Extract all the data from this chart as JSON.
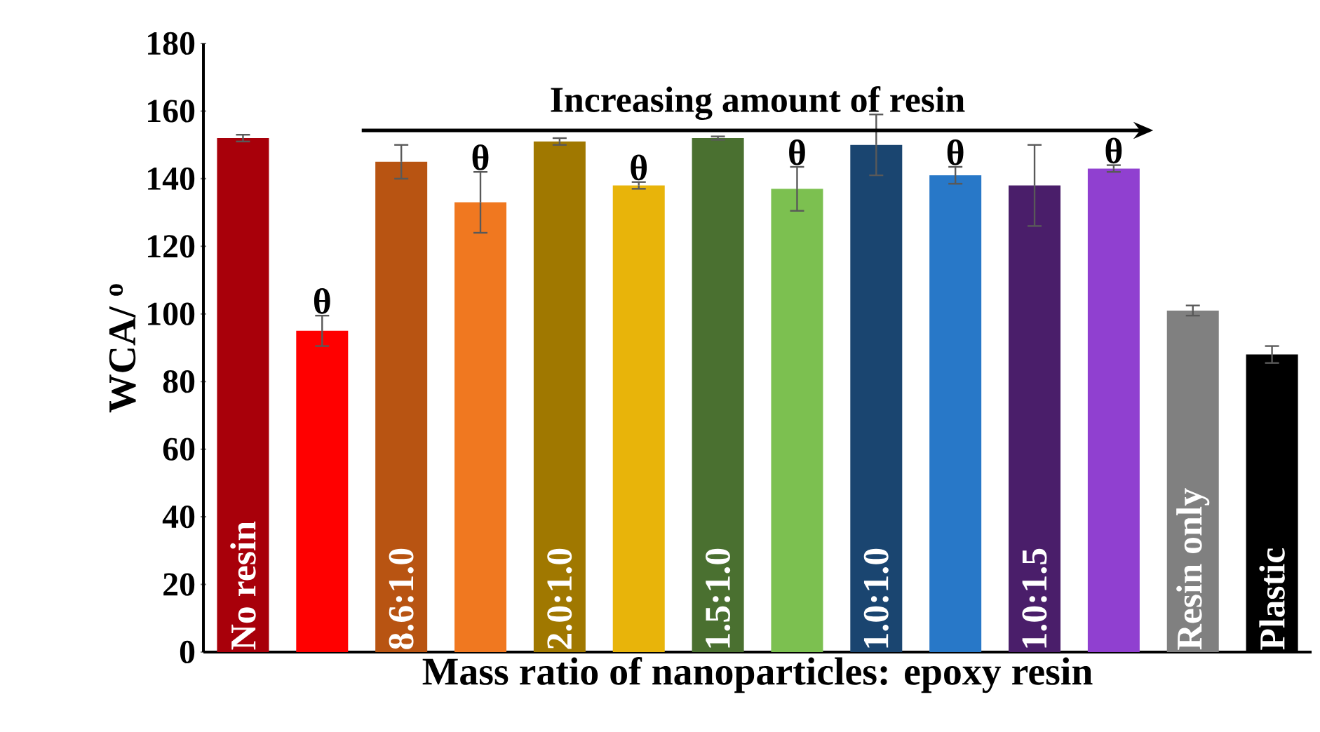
{
  "chart_data": {
    "type": "bar",
    "xlabel": "Mass ratio of nanoparticles: epoxy resin",
    "ylabel": "WCA/ $^{o}$",
    "categories": [
      "No resin",
      null,
      "8.6:1.0",
      null,
      "2.0:1.0",
      null,
      "1.5:1.0",
      null,
      "1.0:1.0",
      null,
      "1.0:1.5",
      null,
      "Resin only",
      "Plastic"
    ],
    "values": [
      152,
      95,
      145,
      133,
      151,
      138,
      152,
      137,
      150,
      141,
      138,
      143,
      101,
      88
    ],
    "errors": [
      1,
      4.5,
      5,
      9,
      1,
      1,
      0.5,
      6.5,
      9,
      2.5,
      12,
      1,
      1.5,
      2.5
    ],
    "value_labels": [
      null,
      "θ",
      null,
      "θ",
      null,
      "θ",
      null,
      "θ",
      null,
      "θ",
      null,
      "θ",
      null,
      null
    ],
    "colors": [
      "#a8000a",
      "#ff0000",
      "#b85412",
      "#f07820",
      "#a07800",
      "#e8b40a",
      "#4a7030",
      "#7cc050",
      "#1a4570",
      "#2878c8",
      "#4a1e6a",
      "#9040d0",
      "#808080",
      "#000000"
    ],
    "ylim": [
      0,
      180
    ],
    "yticks": [
      0,
      20,
      40,
      60,
      80,
      100,
      120,
      140,
      160,
      180
    ],
    "annotations": [
      "Increasing amount of resin"
    ]
  }
}
